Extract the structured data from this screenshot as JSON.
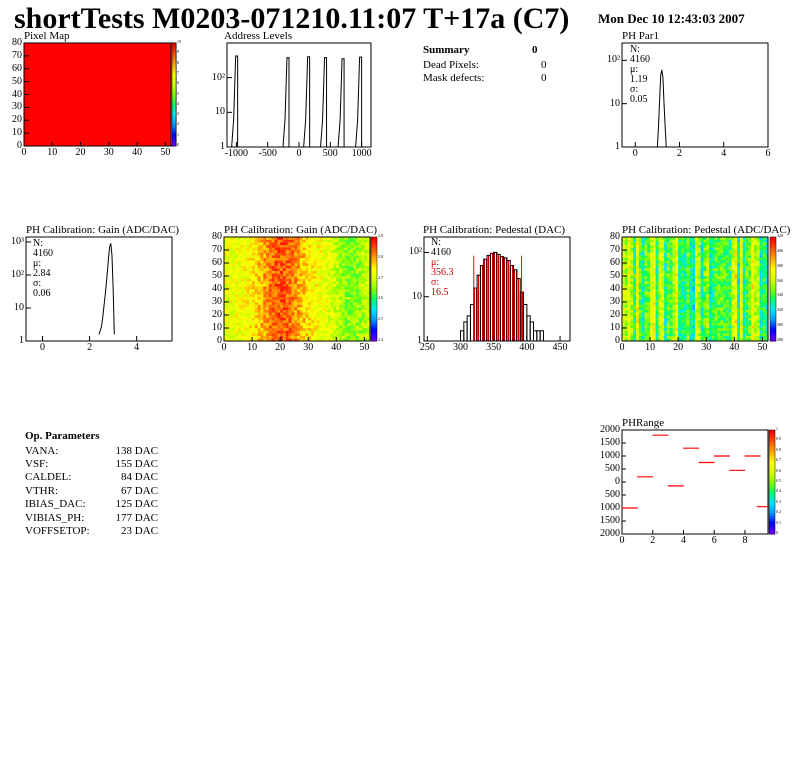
{
  "header": {
    "title": "shortTests M0203-071210.11:07 T+17a (C7)",
    "date": "Mon Dec 10 12:43:03 2007"
  },
  "summary": {
    "title": "Summary",
    "value": "0",
    "rows": [
      {
        "label": "Dead Pixels:",
        "value": "0"
      },
      {
        "label": "Mask defects:",
        "value": "0"
      }
    ]
  },
  "op_params": {
    "title": "Op. Parameters",
    "rows": [
      {
        "name": "VANA:",
        "value": "138 DAC"
      },
      {
        "name": "VSF:",
        "value": "155 DAC"
      },
      {
        "name": "CALDEL:",
        "value": "84 DAC"
      },
      {
        "name": "VTHR:",
        "value": "67 DAC"
      },
      {
        "name": "IBIAS_DAC:",
        "value": "125 DAC"
      },
      {
        "name": "VIBIAS_PH:",
        "value": "177 DAC"
      },
      {
        "name": "VOFFSETOP:",
        "value": "23 DAC"
      }
    ]
  },
  "colors": {
    "heat": [
      "#6a00ff",
      "#0000ff",
      "#0099ff",
      "#00e5ff",
      "#00ff66",
      "#7fff00",
      "#d4ff00",
      "#ffff00",
      "#ffaa00",
      "#ff5500",
      "#ff0000"
    ],
    "red": "#ff0000",
    "line": "#000000",
    "pedestal_fill": "#cc0000"
  },
  "chart_data": [
    {
      "id": "pixel_map",
      "type": "heatmap",
      "title": "Pixel Map",
      "xlim": [
        0,
        52
      ],
      "ylim": [
        0,
        80
      ],
      "xticks": [
        "0",
        "10",
        "20",
        "30",
        "40",
        "50"
      ],
      "yticks": [
        "0",
        "10",
        "20",
        "30",
        "40",
        "50",
        "60",
        "70",
        "80"
      ],
      "zlim": [
        0,
        10
      ],
      "zticks": [
        "0",
        "1",
        "2",
        "3",
        "4",
        "5",
        "6",
        "7",
        "8",
        "9",
        "10"
      ],
      "uniform_value": 10
    },
    {
      "id": "address_levels",
      "type": "bar",
      "title": "Address Levels",
      "xlim": [
        -1150,
        1150
      ],
      "log_y": true,
      "xticks": [
        "-1000",
        "-500",
        "0",
        "500",
        "1000"
      ],
      "yticks": [
        "1",
        "10",
        "10²"
      ],
      "peaks": [
        {
          "x": -980,
          "y": 420
        },
        {
          "x": -160,
          "y": 380
        },
        {
          "x": 170,
          "y": 400
        },
        {
          "x": 440,
          "y": 380
        },
        {
          "x": 720,
          "y": 350
        },
        {
          "x": 1000,
          "y": 390
        }
      ]
    },
    {
      "id": "ph_par1",
      "type": "line",
      "title": "PH Par1",
      "xlim": [
        -0.6,
        6
      ],
      "log_y": true,
      "xticks": [
        "0",
        "2",
        "4",
        "6"
      ],
      "yticks": [
        "1",
        "10",
        "10²"
      ],
      "stats": {
        "n": "N: 4160",
        "mu": "μ: 1.19",
        "sigma": "σ: 0.05"
      },
      "x": [
        0.95,
        1.0,
        1.05,
        1.1,
        1.15,
        1.2,
        1.25,
        1.3,
        1.35,
        1.4,
        1.45
      ],
      "y": [
        1,
        1,
        3,
        12,
        45,
        60,
        40,
        10,
        3,
        1,
        1
      ]
    },
    {
      "id": "gain_1d",
      "type": "line",
      "title": "PH Calibration: Gain (ADC/DAC)",
      "xlim": [
        -0.7,
        5.5
      ],
      "log_y": true,
      "xticks": [
        "0",
        "2",
        "4"
      ],
      "yticks": [
        "1",
        "10",
        "10²",
        "10³"
      ],
      "stats": {
        "n": "N: 4160",
        "mu": "μ: 2.84",
        "sigma": "σ: 0.06"
      },
      "x": [
        2.4,
        2.5,
        2.55,
        2.6,
        2.65,
        2.7,
        2.75,
        2.8,
        2.85,
        2.9,
        2.95,
        3.0,
        3.05
      ],
      "y": [
        1,
        2,
        4,
        9,
        20,
        45,
        110,
        300,
        700,
        900,
        400,
        40,
        1
      ]
    },
    {
      "id": "gain_map",
      "type": "heatmap",
      "title": "PH Calibration: Gain (ADC/DAC)",
      "xlim": [
        0,
        52
      ],
      "ylim": [
        0,
        80
      ],
      "xticks": [
        "0",
        "10",
        "20",
        "30",
        "40",
        "50"
      ],
      "yticks": [
        "0",
        "10",
        "20",
        "30",
        "40",
        "50",
        "60",
        "70",
        "80"
      ],
      "zlim": [
        2.4,
        3.0
      ],
      "zticks": [
        "2.4",
        "2.5",
        "2.6",
        "2.7",
        "2.8",
        "2.9"
      ]
    },
    {
      "id": "pedestal_1d",
      "type": "bar",
      "title": "PH Calibration: Pedestal (DAC)",
      "xlim": [
        245,
        465
      ],
      "log_y": true,
      "xticks": [
        "250",
        "300",
        "350",
        "400",
        "450"
      ],
      "yticks": [
        "1",
        "10",
        "10²"
      ],
      "stats": {
        "n": "N: 4160",
        "mu": "μ: 356.3",
        "sigma": "σ: 16.5"
      },
      "fit_markers": [
        320,
        392
      ],
      "x": [
        300,
        305,
        310,
        315,
        320,
        325,
        330,
        335,
        340,
        345,
        350,
        355,
        360,
        365,
        370,
        375,
        380,
        385,
        390,
        395,
        400,
        405,
        410,
        415,
        420
      ],
      "y": [
        1,
        2,
        3,
        6,
        15,
        30,
        50,
        70,
        85,
        95,
        100,
        90,
        80,
        75,
        65,
        50,
        40,
        25,
        12,
        6,
        3,
        2,
        1,
        1,
        1
      ]
    },
    {
      "id": "pedestal_map",
      "type": "heatmap",
      "title": "PH Calibration: Pedestal (ADC/DAC)",
      "xlim": [
        0,
        52
      ],
      "ylim": [
        0,
        80
      ],
      "xticks": [
        "0",
        "10",
        "20",
        "30",
        "40",
        "50"
      ],
      "yticks": [
        "0",
        "10",
        "20",
        "30",
        "40",
        "50",
        "60",
        "70",
        "80"
      ],
      "zlim": [
        280,
        420
      ],
      "zticks": [
        "280",
        "300",
        "320",
        "340",
        "360",
        "380",
        "400",
        "420"
      ]
    },
    {
      "id": "ph_range",
      "type": "scatter",
      "title": "PHRange",
      "xlim": [
        0,
        9.5
      ],
      "ylim": [
        -2000,
        2000
      ],
      "xticks": [
        "0",
        "2",
        "4",
        "6",
        "8"
      ],
      "yticks": [
        "2000",
        "1500",
        "1000",
        "500",
        "0",
        "500",
        "1000",
        "1500",
        "2000"
      ],
      "zlim": [
        0,
        1
      ],
      "zticks": [
        "0",
        "0.1",
        "0.2",
        "0.3",
        "0.4",
        "0.5",
        "0.6",
        "0.7",
        "0.8",
        "0.9",
        "1"
      ],
      "segments": [
        {
          "x": 0.5,
          "y": -1000
        },
        {
          "x": 1.5,
          "y": 200
        },
        {
          "x": 2.5,
          "y": 1800
        },
        {
          "x": 3.5,
          "y": -150
        },
        {
          "x": 4.5,
          "y": 1300
        },
        {
          "x": 5.5,
          "y": 750
        },
        {
          "x": 6.5,
          "y": 1000
        },
        {
          "x": 7.5,
          "y": 450
        },
        {
          "x": 8.5,
          "y": 1000
        },
        {
          "x": 9.3,
          "y": -950
        }
      ]
    }
  ]
}
